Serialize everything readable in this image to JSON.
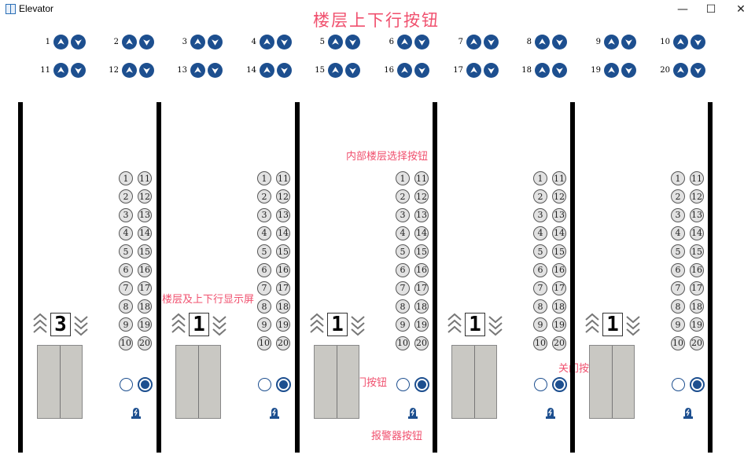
{
  "window": {
    "title": "Elevator",
    "minimize_glyph": "—",
    "maximize_glyph": "☐",
    "close_glyph": "✕"
  },
  "annotations": {
    "floor_call_buttons": "楼层上下行按钮",
    "inner_floor_select": "内部楼层选择按钮",
    "floor_direction_display": "楼层及上下行显示屏",
    "open_door_button": "开门按钮",
    "close_door_button": "关门按钮",
    "alarm_button": "报警器按钮"
  },
  "floor_calls": {
    "row1": [
      "1",
      "2",
      "3",
      "4",
      "5",
      "6",
      "7",
      "8",
      "9",
      "10"
    ],
    "row2": [
      "11",
      "12",
      "13",
      "14",
      "15",
      "16",
      "17",
      "18",
      "19",
      "20"
    ],
    "up_icon": "up-arrow-icon",
    "down_icon": "down-arrow-icon"
  },
  "elevators": [
    {
      "floor": "3"
    },
    {
      "floor": "1"
    },
    {
      "floor": "1"
    },
    {
      "floor": "1"
    },
    {
      "floor": "1"
    }
  ],
  "inner_buttons": {
    "left": [
      "1",
      "2",
      "3",
      "4",
      "5",
      "6",
      "7",
      "8",
      "9",
      "10"
    ],
    "right": [
      "11",
      "12",
      "13",
      "14",
      "15",
      "16",
      "17",
      "18",
      "19",
      "20"
    ]
  },
  "colors": {
    "accent": "#1d4f8f",
    "annotation": "#f0506e",
    "car": "#c9c8c3"
  }
}
